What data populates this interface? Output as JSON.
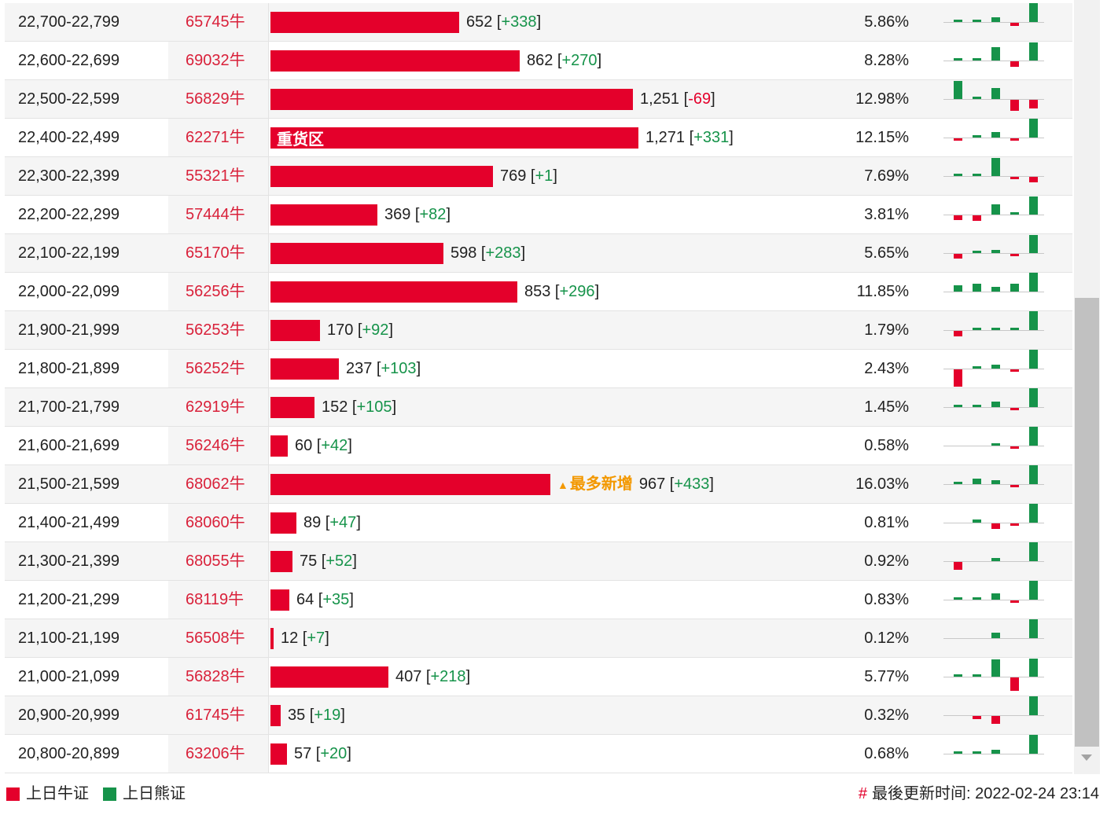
{
  "colors": {
    "bull": "#e4002b",
    "bear": "#16934a",
    "code_text": "#d9213a",
    "highlight": "#f39800"
  },
  "rows": [
    {
      "range": "22,700-22,799",
      "code": "65745牛",
      "count": 652,
      "count_text": "652",
      "change": "+338",
      "pct": "5.86%",
      "label": "",
      "tag": "",
      "mini": [
        [
          "g",
          0.12
        ],
        [
          "g",
          0.08
        ],
        [
          "g",
          0.25
        ],
        [
          "r",
          -0.18
        ],
        [
          "g",
          1.0
        ]
      ]
    },
    {
      "range": "22,600-22,699",
      "code": "69032牛",
      "count": 862,
      "count_text": "862",
      "change": "+270",
      "pct": "8.28%",
      "label": "",
      "tag": "",
      "mini": [
        [
          "g",
          0.06
        ],
        [
          "g",
          0.14
        ],
        [
          "g",
          0.7
        ],
        [
          "r",
          -0.28
        ],
        [
          "g",
          0.95
        ]
      ]
    },
    {
      "range": "22,500-22,599",
      "code": "56829牛",
      "count": 1251,
      "count_text": "1,251",
      "change": "-69",
      "pct": "12.98%",
      "label": "",
      "tag": "",
      "mini": [
        [
          "g",
          0.95
        ],
        [
          "g",
          0.12
        ],
        [
          "g",
          0.6
        ],
        [
          "r",
          -0.6
        ],
        [
          "r",
          -0.45
        ]
      ]
    },
    {
      "range": "22,400-22,499",
      "code": "62271牛",
      "count": 1271,
      "count_text": "1,271",
      "change": "+331",
      "pct": "12.15%",
      "label": "重货区",
      "tag": "",
      "mini": [
        [
          "r",
          -0.1
        ],
        [
          "g",
          0.06
        ],
        [
          "g",
          0.3
        ],
        [
          "r",
          -0.08
        ],
        [
          "g",
          1.0
        ]
      ]
    },
    {
      "range": "22,300-22,399",
      "code": "55321牛",
      "count": 769,
      "count_text": "769",
      "change": "+1",
      "pct": "7.69%",
      "label": "",
      "tag": "",
      "mini": [
        [
          "g",
          0.12
        ],
        [
          "g",
          0.1
        ],
        [
          "g",
          0.95
        ],
        [
          "r",
          -0.06
        ],
        [
          "r",
          -0.3
        ]
      ]
    },
    {
      "range": "22,200-22,299",
      "code": "57444牛",
      "count": 369,
      "count_text": "369",
      "change": "+82",
      "pct": "3.81%",
      "label": "",
      "tag": "",
      "mini": [
        [
          "r",
          -0.25
        ],
        [
          "r",
          -0.28
        ],
        [
          "g",
          0.55
        ],
        [
          "g",
          0.12
        ],
        [
          "g",
          0.95
        ]
      ]
    },
    {
      "range": "22,100-22,199",
      "code": "65170牛",
      "count": 598,
      "count_text": "598",
      "change": "+283",
      "pct": "5.65%",
      "label": "",
      "tag": "",
      "mini": [
        [
          "r",
          -0.25
        ],
        [
          "g",
          0.06
        ],
        [
          "g",
          0.15
        ],
        [
          "r",
          -0.06
        ],
        [
          "g",
          0.95
        ]
      ]
    },
    {
      "range": "22,000-22,099",
      "code": "56256牛",
      "count": 853,
      "count_text": "853",
      "change": "+296",
      "pct": "11.85%",
      "label": "",
      "tag": "",
      "mini": [
        [
          "g",
          0.35
        ],
        [
          "g",
          0.4
        ],
        [
          "g",
          0.25
        ],
        [
          "g",
          0.4
        ],
        [
          "g",
          1.0
        ]
      ]
    },
    {
      "range": "21,900-21,999",
      "code": "56253牛",
      "count": 170,
      "count_text": "170",
      "change": "+92",
      "pct": "1.79%",
      "label": "",
      "tag": "",
      "mini": [
        [
          "r",
          -0.3
        ],
        [
          "g",
          0.08
        ],
        [
          "g",
          0.12
        ],
        [
          "g",
          0.06
        ],
        [
          "g",
          1.0
        ]
      ]
    },
    {
      "range": "21,800-21,899",
      "code": "56252牛",
      "count": 237,
      "count_text": "237",
      "change": "+103",
      "pct": "2.43%",
      "label": "",
      "tag": "",
      "mini": [
        [
          "r",
          -0.9
        ],
        [
          "g",
          0.06
        ],
        [
          "g",
          0.22
        ],
        [
          "r",
          -0.06
        ],
        [
          "g",
          1.0
        ]
      ]
    },
    {
      "range": "21,700-21,799",
      "code": "62919牛",
      "count": 152,
      "count_text": "152",
      "change": "+105",
      "pct": "1.45%",
      "label": "",
      "tag": "",
      "mini": [
        [
          "g",
          0.06
        ],
        [
          "g",
          0.06
        ],
        [
          "g",
          0.3
        ],
        [
          "r",
          -0.12
        ],
        [
          "g",
          1.0
        ]
      ]
    },
    {
      "range": "21,600-21,699",
      "code": "56246牛",
      "count": 60,
      "count_text": "60",
      "change": "+42",
      "pct": "0.58%",
      "label": "",
      "tag": "",
      "mini": [
        [
          "g",
          0.0
        ],
        [
          "g",
          0.0
        ],
        [
          "g",
          0.05
        ],
        [
          "r",
          -0.05
        ],
        [
          "g",
          1.0
        ]
      ]
    },
    {
      "range": "21,500-21,599",
      "code": "68062牛",
      "count": 967,
      "count_text": "967",
      "change": "+433",
      "pct": "16.03%",
      "label": "",
      "tag": "最多新增",
      "mini": [
        [
          "g",
          0.08
        ],
        [
          "g",
          0.3
        ],
        [
          "g",
          0.22
        ],
        [
          "r",
          -0.06
        ],
        [
          "g",
          1.0
        ]
      ]
    },
    {
      "range": "21,400-21,499",
      "code": "68060牛",
      "count": 89,
      "count_text": "89",
      "change": "+47",
      "pct": "0.81%",
      "label": "",
      "tag": "",
      "mini": [
        [
          "g",
          0.0
        ],
        [
          "g",
          0.18
        ],
        [
          "r",
          -0.3
        ],
        [
          "r",
          -0.06
        ],
        [
          "g",
          1.0
        ]
      ]
    },
    {
      "range": "21,300-21,399",
      "code": "68055牛",
      "count": 75,
      "count_text": "75",
      "change": "+52",
      "pct": "0.92%",
      "label": "",
      "tag": "",
      "mini": [
        [
          "r",
          -0.4
        ],
        [
          "g",
          0.0
        ],
        [
          "g",
          0.15
        ],
        [
          "g",
          0.0
        ],
        [
          "g",
          1.0
        ]
      ]
    },
    {
      "range": "21,200-21,299",
      "code": "68119牛",
      "count": 64,
      "count_text": "64",
      "change": "+35",
      "pct": "0.83%",
      "label": "",
      "tag": "",
      "mini": [
        [
          "g",
          0.06
        ],
        [
          "g",
          0.06
        ],
        [
          "g",
          0.35
        ],
        [
          "r",
          -0.12
        ],
        [
          "g",
          1.0
        ]
      ]
    },
    {
      "range": "21,100-21,199",
      "code": "56508牛",
      "count": 12,
      "count_text": "12",
      "change": "+7",
      "pct": "0.12%",
      "label": "",
      "tag": "",
      "mini": [
        [
          "g",
          0.0
        ],
        [
          "g",
          0.0
        ],
        [
          "g",
          0.3
        ],
        [
          "g",
          0.0
        ],
        [
          "g",
          1.0
        ]
      ]
    },
    {
      "range": "21,000-21,099",
      "code": "56828牛",
      "count": 407,
      "count_text": "407",
      "change": "+218",
      "pct": "5.77%",
      "label": "",
      "tag": "",
      "mini": [
        [
          "g",
          0.06
        ],
        [
          "g",
          0.06
        ],
        [
          "g",
          0.9
        ],
        [
          "r",
          -0.7
        ],
        [
          "g",
          0.95
        ]
      ]
    },
    {
      "range": "20,900-20,999",
      "code": "61745牛",
      "count": 35,
      "count_text": "35",
      "change": "+19",
      "pct": "0.32%",
      "label": "",
      "tag": "",
      "mini": [
        [
          "g",
          0.0
        ],
        [
          "r",
          -0.15
        ],
        [
          "r",
          -0.4
        ],
        [
          "g",
          0.0
        ],
        [
          "g",
          1.0
        ]
      ]
    },
    {
      "range": "20,800-20,899",
      "code": "63206牛",
      "count": 57,
      "count_text": "57",
      "change": "+20",
      "pct": "0.68%",
      "label": "",
      "tag": "",
      "mini": [
        [
          "g",
          0.06
        ],
        [
          "g",
          0.1
        ],
        [
          "g",
          0.22
        ],
        [
          "g",
          0.0
        ],
        [
          "g",
          1.0
        ]
      ]
    }
  ],
  "bar_scale_max": 1271,
  "legend": {
    "bull_label": "上日牛证",
    "bear_label": "上日熊证"
  },
  "footer": {
    "hash": "#",
    "updated_label": "最後更新时间:",
    "updated_time": "2022-02-24 23:14"
  }
}
